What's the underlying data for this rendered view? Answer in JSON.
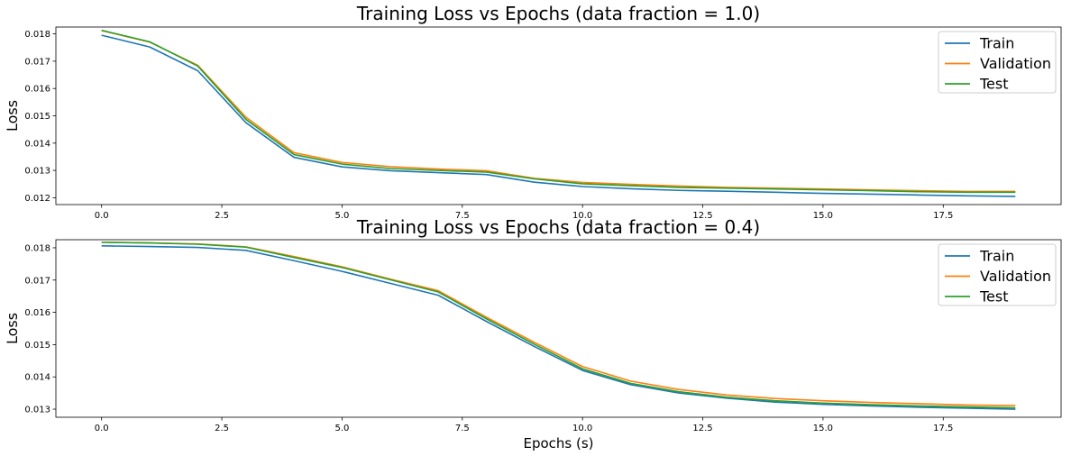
{
  "chart_data": [
    {
      "type": "line",
      "title": "Training Loss vs Epochs (data fraction = 1.0)",
      "xlabel": "",
      "ylabel": "Loss",
      "xlim": [
        -0.95,
        19.95
      ],
      "ylim": [
        0.01175,
        0.01825
      ],
      "xticks": [
        0.0,
        2.5,
        5.0,
        7.5,
        10.0,
        12.5,
        15.0,
        17.5
      ],
      "xtick_labels": [
        "0.0",
        "2.5",
        "5.0",
        "7.5",
        "10.0",
        "12.5",
        "15.0",
        "17.5"
      ],
      "yticks": [
        0.012,
        0.013,
        0.014,
        0.015,
        0.016,
        0.017,
        0.018
      ],
      "ytick_labels": [
        "0.012",
        "0.013",
        "0.014",
        "0.015",
        "0.016",
        "0.017",
        "0.018"
      ],
      "legend_position": "top-right",
      "x": [
        0,
        1,
        2,
        3,
        4,
        5,
        6,
        7,
        8,
        9,
        10,
        11,
        12,
        13,
        14,
        15,
        16,
        17,
        18,
        19
      ],
      "series": [
        {
          "name": "Train",
          "color": "#1f77b4",
          "values": [
            0.01795,
            0.01752,
            0.01665,
            0.01475,
            0.01348,
            0.01313,
            0.01299,
            0.01292,
            0.01285,
            0.01257,
            0.01241,
            0.01233,
            0.01227,
            0.01224,
            0.0122,
            0.01216,
            0.01213,
            0.0121,
            0.01207,
            0.01205
          ]
        },
        {
          "name": "Validation",
          "color": "#ff7f0e",
          "values": [
            0.01812,
            0.0177,
            0.01685,
            0.01495,
            0.01365,
            0.01329,
            0.01314,
            0.01305,
            0.01299,
            0.01271,
            0.01256,
            0.01249,
            0.01243,
            0.01238,
            0.01235,
            0.01232,
            0.01229,
            0.01226,
            0.01223,
            0.01223
          ]
        },
        {
          "name": "Test",
          "color": "#2ca02c",
          "values": [
            0.01813,
            0.01771,
            0.01682,
            0.01487,
            0.01358,
            0.01323,
            0.01307,
            0.013,
            0.01294,
            0.01269,
            0.01251,
            0.01244,
            0.01238,
            0.01235,
            0.01232,
            0.01229,
            0.01226,
            0.01222,
            0.0122,
            0.0122
          ]
        }
      ]
    },
    {
      "type": "line",
      "title": "Training Loss vs Epochs (data fraction = 0.4)",
      "xlabel": "Epochs (s)",
      "ylabel": "Loss",
      "xlim": [
        -0.95,
        19.95
      ],
      "ylim": [
        0.01275,
        0.01825
      ],
      "xticks": [
        0.0,
        2.5,
        5.0,
        7.5,
        10.0,
        12.5,
        15.0,
        17.5
      ],
      "xtick_labels": [
        "0.0",
        "2.5",
        "5.0",
        "7.5",
        "10.0",
        "12.5",
        "15.0",
        "17.5"
      ],
      "yticks": [
        0.013,
        0.014,
        0.015,
        0.016,
        0.017,
        0.018
      ],
      "ytick_labels": [
        "0.013",
        "0.014",
        "0.015",
        "0.016",
        "0.017",
        "0.018"
      ],
      "legend_position": "top-right",
      "x": [
        0,
        1,
        2,
        3,
        4,
        5,
        6,
        7,
        8,
        9,
        10,
        11,
        12,
        13,
        14,
        15,
        16,
        17,
        18,
        19
      ],
      "series": [
        {
          "name": "Train",
          "color": "#1f77b4",
          "values": [
            0.01806,
            0.01804,
            0.01801,
            0.01792,
            0.0176,
            0.01727,
            0.0169,
            0.01653,
            0.01572,
            0.01494,
            0.0142,
            0.01376,
            0.0135,
            0.01334,
            0.01322,
            0.01315,
            0.0131,
            0.01306,
            0.01303,
            0.013
          ]
        },
        {
          "name": "Validation",
          "color": "#ff7f0e",
          "values": [
            0.01817,
            0.01815,
            0.01812,
            0.01803,
            0.01773,
            0.01741,
            0.01703,
            0.01667,
            0.01585,
            0.01507,
            0.01432,
            0.01387,
            0.01361,
            0.01344,
            0.01333,
            0.01326,
            0.01321,
            0.01317,
            0.01313,
            0.01311
          ]
        },
        {
          "name": "Test",
          "color": "#2ca02c",
          "values": [
            0.01817,
            0.01815,
            0.01811,
            0.01802,
            0.0177,
            0.01739,
            0.01701,
            0.01663,
            0.0158,
            0.01501,
            0.01425,
            0.0138,
            0.01354,
            0.01337,
            0.01326,
            0.01319,
            0.01314,
            0.0131,
            0.01307,
            0.01304
          ]
        }
      ]
    }
  ]
}
